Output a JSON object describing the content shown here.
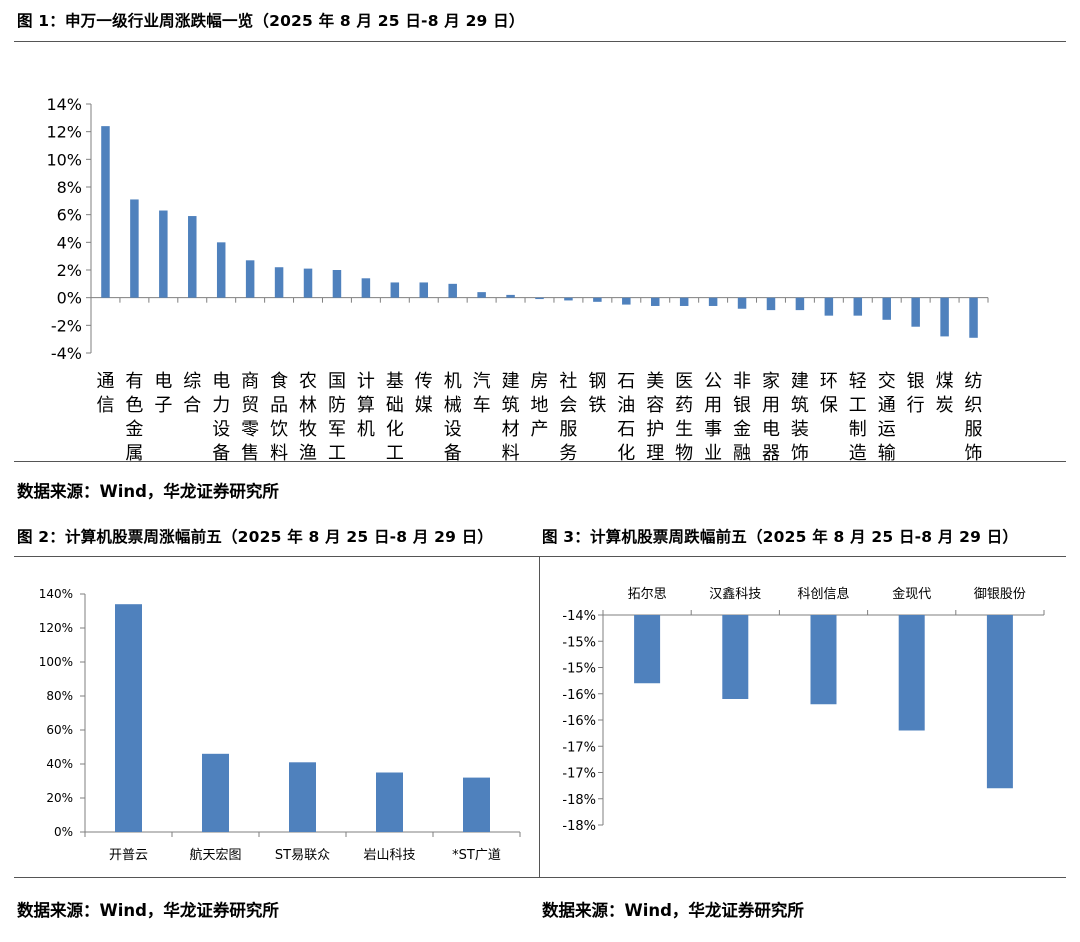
{
  "figure1": {
    "title": "图 1：申万一级行业周涨跌幅一览（2025 年 8 月 25 日-8 月 29 日）",
    "source": "数据来源：Wind，华龙证券研究所"
  },
  "figure2": {
    "title": "图 2：计算机股票周涨幅前五（2025 年 8 月 25 日-8 月 29 日）",
    "source": "数据来源：Wind，华龙证券研究所"
  },
  "figure3": {
    "title": "图 3：计算机股票周跌幅前五（2025 年 8 月 25 日-8 月 29 日）",
    "source": "数据来源：Wind，华龙证券研究所"
  },
  "colors": {
    "bar": "#4f81bd",
    "axis": "#7f7f7f",
    "rule": "#555555"
  },
  "chart_data": [
    {
      "id": "industry-weekly",
      "type": "bar",
      "title": "申万一级行业周涨跌幅一览（2025 年 8 月 25 日-8 月 29 日）",
      "categories": [
        "通信",
        "有色金属",
        "电子",
        "综合",
        "电力设备",
        "商贸零售",
        "食品饮料",
        "农林牧渔",
        "国防军工",
        "计算机",
        "基础化工",
        "传媒",
        "机械设备",
        "汽车",
        "建筑材料",
        "房地产",
        "社会服务",
        "钢铁",
        "石油石化",
        "美容护理",
        "医药生物",
        "公用事业",
        "非银金融",
        "家用电器",
        "建筑装饰",
        "环保",
        "轻工制造",
        "交通运输",
        "银行",
        "煤炭",
        "纺织服饰"
      ],
      "values": [
        12.4,
        7.1,
        6.3,
        5.9,
        4.0,
        2.7,
        2.2,
        2.1,
        2.0,
        1.4,
        1.1,
        1.1,
        1.0,
        0.4,
        0.2,
        -0.1,
        -0.2,
        -0.3,
        -0.5,
        -0.6,
        -0.6,
        -0.6,
        -0.8,
        -0.9,
        -0.9,
        -1.3,
        -1.3,
        -1.6,
        -2.1,
        -2.8,
        -2.9
      ],
      "ylim": [
        -4,
        14
      ],
      "yticks": [
        -4,
        -2,
        0,
        2,
        4,
        6,
        8,
        10,
        12,
        14
      ],
      "ytick_labels": [
        "-4%",
        "-2%",
        "0%",
        "2%",
        "4%",
        "6%",
        "8%",
        "10%",
        "12%",
        "14%"
      ],
      "xlabel": "",
      "ylabel": ""
    },
    {
      "id": "top-gainers",
      "type": "bar",
      "title": "计算机股票周涨幅前五（2025 年 8 月 25 日-8 月 29 日）",
      "categories": [
        "开普云",
        "航天宏图",
        "ST易联众",
        "岩山科技",
        "*ST广道"
      ],
      "values": [
        134,
        46,
        41,
        35,
        32
      ],
      "ylim": [
        0,
        140
      ],
      "yticks": [
        0,
        20,
        40,
        60,
        80,
        100,
        120,
        140
      ],
      "ytick_labels": [
        "0%",
        "20%",
        "40%",
        "60%",
        "80%",
        "100%",
        "120%",
        "140%"
      ],
      "xlabel": "",
      "ylabel": ""
    },
    {
      "id": "top-losers",
      "type": "bar",
      "title": "计算机股票周跌幅前五（2025 年 8 月 25 日-8 月 29 日）",
      "categories": [
        "拓尔思",
        "汉鑫科技",
        "科创信息",
        "金现代",
        "御银股份"
      ],
      "values": [
        -15.3,
        -15.6,
        -15.7,
        -16.2,
        -17.3
      ],
      "ylim": [
        -18,
        -14
      ],
      "yticks": [
        -14,
        -14.5,
        -15,
        -15.5,
        -16,
        -16.5,
        -17,
        -17.5,
        -18
      ],
      "ytick_labels": [
        "-14%",
        "-15%",
        "-15%",
        "-16%",
        "-16%",
        "-17%",
        "-17%",
        "-18%",
        "-18%"
      ],
      "xlabel": "",
      "ylabel": "",
      "category_axis": "top"
    }
  ]
}
